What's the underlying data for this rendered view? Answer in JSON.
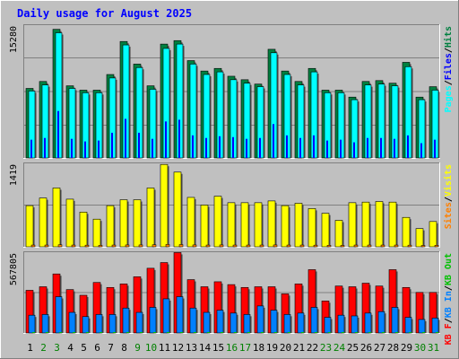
{
  "title": "Daily usage for August 2025",
  "colors": {
    "background": "#c0c0c0",
    "title": "#0000ff",
    "pages": "#00ffff",
    "files": "#0000ff",
    "hits": "#008040",
    "visits": "#ffff00",
    "sites": "#ff8000",
    "kb_in": "#0080ff",
    "kb_out": "#00c000",
    "kb_f": "#ff0000",
    "weekday_label": "#000000",
    "weekend_label": "#008000",
    "gridline": "#808080"
  },
  "legend": {
    "hits_panel": [
      {
        "text": "Pages",
        "color": "#00ffff"
      },
      {
        "text": "/",
        "color": "#000000"
      },
      {
        "text": "Files",
        "color": "#0000ff"
      },
      {
        "text": "/",
        "color": "#000000"
      },
      {
        "text": "Hits",
        "color": "#008040"
      }
    ],
    "visits_panel": [
      {
        "text": "Sites",
        "color": "#ff8000"
      },
      {
        "text": "/",
        "color": "#000000"
      },
      {
        "text": "Visits",
        "color": "#ffff00"
      }
    ],
    "kb_panel": [
      {
        "text": "KB F",
        "color": "#ff0000"
      },
      {
        "text": "/",
        "color": "#000000"
      },
      {
        "text": "KB In",
        "color": "#0080ff"
      },
      {
        "text": "/",
        "color": "#000000"
      },
      {
        "text": "KB Out",
        "color": "#00c000"
      }
    ]
  },
  "chart_data": {
    "type": "bar",
    "categories": [
      "1",
      "2",
      "3",
      "4",
      "5",
      "6",
      "7",
      "8",
      "9",
      "10",
      "11",
      "12",
      "13",
      "14",
      "15",
      "16",
      "17",
      "18",
      "19",
      "20",
      "21",
      "22",
      "23",
      "24",
      "25",
      "26",
      "27",
      "28",
      "29",
      "30",
      "31"
    ],
    "weekend_days": [
      "2",
      "3",
      "9",
      "10",
      "16",
      "17",
      "23",
      "24",
      "30",
      "31"
    ],
    "panels": [
      {
        "id": "hits",
        "ymax_label": "15280",
        "ymax": 15280,
        "series": [
          {
            "name": "Hits",
            "values": [
              8000,
              8800,
              14800,
              8300,
              7800,
              7800,
              9600,
              13400,
              10800,
              8300,
              13100,
              13500,
              11200,
              10000,
              10300,
              9400,
              9000,
              8500,
              12500,
              10000,
              8800,
              10300,
              7800,
              7800,
              7000,
              8800,
              8900,
              8600,
              11000,
              7000,
              8200
            ]
          },
          {
            "name": "Files",
            "values": [
              7700,
              8400,
              14400,
              8000,
              7500,
              7500,
              9200,
              13000,
              10400,
              7900,
              12600,
              13100,
              10800,
              9600,
              9900,
              9000,
              8600,
              8200,
              12100,
              9600,
              8400,
              9900,
              7500,
              7500,
              6700,
              8400,
              8500,
              8300,
              10500,
              6700,
              7800
            ]
          },
          {
            "name": "Pages",
            "values": [
              2100,
              2300,
              5400,
              2200,
              1900,
              2000,
              2900,
              4500,
              2900,
              2200,
              4200,
              4400,
              2600,
              2300,
              2500,
              2400,
              2200,
              2300,
              3900,
              2600,
              2300,
              2600,
              2000,
              2100,
              1800,
              2300,
              2300,
              2200,
              2600,
              1700,
              2100
            ]
          }
        ]
      },
      {
        "id": "visits",
        "ymax_label": "1419",
        "ymax": 1419,
        "series": [
          {
            "name": "Visits",
            "values": [
              700,
              830,
              1000,
              810,
              590,
              470,
              700,
              800,
              800,
              1000,
              1400,
              1270,
              840,
              710,
              860,
              750,
              750,
              750,
              780,
              700,
              740,
              650,
              570,
              450,
              750,
              760,
              770,
              760,
              500,
              310,
              430
            ]
          },
          {
            "name": "Sites",
            "values": [
              30,
              30,
              35,
              30,
              28,
              25,
              30,
              32,
              32,
              35,
              40,
              38,
              32,
              30,
              32,
              30,
              30,
              30,
              32,
              30,
              30,
              28,
              26,
              24,
              30,
              30,
              30,
              30,
              28,
              22,
              26
            ]
          }
        ]
      },
      {
        "id": "kb",
        "ymax_label": "567805",
        "ymax": 567805,
        "series": [
          {
            "name": "KB F",
            "values": [
              300000,
              325000,
              415000,
              305000,
              265000,
              355000,
              320000,
              345000,
              395000,
              455000,
              495000,
              565000,
              375000,
              325000,
              360000,
              340000,
              320000,
              325000,
              325000,
              275000,
              345000,
              445000,
              225000,
              330000,
              325000,
              350000,
              330000,
              445000,
              320000,
              285000,
              285000
            ]
          },
          {
            "name": "KB In",
            "values": [
              125000,
              130000,
              255000,
              145000,
              115000,
              130000,
              130000,
              175000,
              145000,
              180000,
              240000,
              255000,
              175000,
              145000,
              160000,
              140000,
              130000,
              190000,
              160000,
              130000,
              140000,
              180000,
              110000,
              125000,
              120000,
              140000,
              150000,
              180000,
              110000,
              95000,
              105000
            ]
          },
          {
            "name": "KB Out",
            "values": [
              1500,
              1500,
              2000,
              1500,
              1500,
              1500,
              1500,
              2000,
              1500,
              1500,
              2000,
              2000,
              1500,
              1500,
              1500,
              1500,
              1500,
              1500,
              1500,
              1500,
              1500,
              1500,
              1500,
              1500,
              1500,
              1500,
              1500,
              1500,
              1500,
              1500,
              1500
            ]
          }
        ]
      }
    ]
  }
}
